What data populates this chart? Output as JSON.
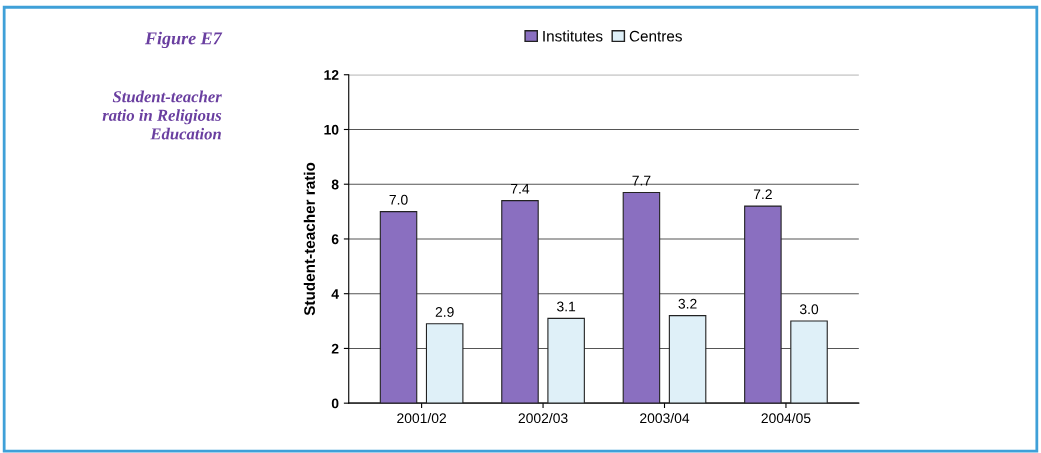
{
  "chart_data": {
    "type": "bar",
    "title": "Figure E7",
    "subtitle": "Student-teacher\nratio in Religious\nEducation",
    "ylabel": "Student-teacher ratio",
    "categories": [
      "2001/02",
      "2002/03",
      "2003/04",
      "2004/05"
    ],
    "series": [
      {
        "name": "Institutes",
        "color": "#8a6fc0",
        "values": [
          7.0,
          7.4,
          7.7,
          7.2
        ],
        "value_labels": [
          "7.0",
          "7.4",
          "7.7",
          "7.2"
        ]
      },
      {
        "name": "Centres",
        "color": "#dff0f8",
        "values": [
          2.9,
          3.1,
          3.2,
          3.0
        ],
        "value_labels": [
          "2.9",
          "3.1",
          "3.2",
          "3.0"
        ]
      }
    ],
    "ylim": [
      0,
      12
    ],
    "yticks": [
      0,
      2,
      4,
      6,
      8,
      10,
      12
    ],
    "grid": "y",
    "legend": "top"
  }
}
